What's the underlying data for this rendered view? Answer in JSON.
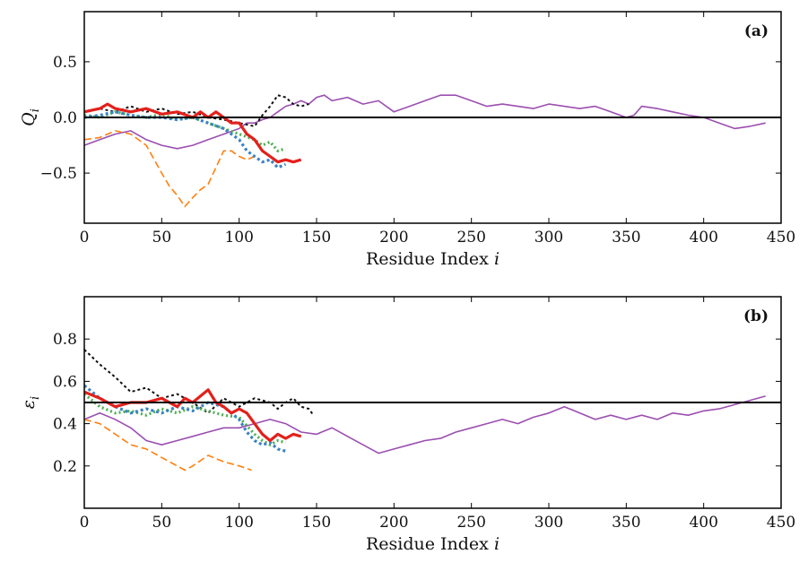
{
  "chart_data": [
    {
      "type": "line",
      "panel_label": "(a)",
      "xlabel": "Residue Index",
      "xlabel_var": "i",
      "ylabel": "Q",
      "ylabel_sub": "i",
      "xlim": [
        0,
        450
      ],
      "ylim": [
        -0.95,
        0.95
      ],
      "xticks": [
        0,
        50,
        100,
        150,
        200,
        250,
        300,
        350,
        400,
        450
      ],
      "yticks": [
        -0.5,
        0.0,
        0.5
      ],
      "ytick_labels": [
        "−0.5",
        "0.0",
        "0.5"
      ],
      "reference_line": 0.0,
      "series": [
        {
          "name": "purple",
          "color": "#9b4fb0",
          "dash": "",
          "width": 1.6,
          "x": [
            0,
            10,
            20,
            30,
            40,
            50,
            60,
            70,
            80,
            90,
            100,
            105,
            110,
            115,
            120,
            125,
            130,
            135,
            140,
            145,
            150,
            155,
            160,
            170,
            180,
            190,
            200,
            210,
            220,
            230,
            240,
            250,
            260,
            270,
            280,
            290,
            300,
            310,
            320,
            330,
            340,
            350,
            355,
            360,
            370,
            380,
            390,
            400,
            410,
            420,
            430,
            440
          ],
          "y": [
            -0.25,
            -0.2,
            -0.15,
            -0.12,
            -0.2,
            -0.25,
            -0.28,
            -0.25,
            -0.2,
            -0.15,
            -0.1,
            -0.05,
            -0.05,
            -0.02,
            0.0,
            0.05,
            0.1,
            0.12,
            0.15,
            0.12,
            0.18,
            0.2,
            0.15,
            0.18,
            0.12,
            0.15,
            0.05,
            0.1,
            0.15,
            0.2,
            0.2,
            0.15,
            0.1,
            0.12,
            0.1,
            0.08,
            0.12,
            0.1,
            0.08,
            0.1,
            0.05,
            0.0,
            0.02,
            0.1,
            0.08,
            0.05,
            0.02,
            0.0,
            -0.05,
            -0.1,
            -0.08,
            -0.05
          ]
        },
        {
          "name": "orange",
          "color": "#ff7f0e",
          "dash": "8,4",
          "width": 1.6,
          "x": [
            0,
            10,
            20,
            30,
            40,
            50,
            55,
            60,
            65,
            70,
            75,
            80,
            85,
            90,
            95,
            100,
            105,
            110
          ],
          "y": [
            -0.2,
            -0.18,
            -0.12,
            -0.15,
            -0.25,
            -0.5,
            -0.62,
            -0.7,
            -0.8,
            -0.72,
            -0.65,
            -0.6,
            -0.45,
            -0.3,
            -0.3,
            -0.35,
            -0.38,
            -0.35
          ]
        },
        {
          "name": "black",
          "color": "#111111",
          "dash": "3,3",
          "width": 2.0,
          "x": [
            0,
            10,
            20,
            30,
            40,
            50,
            60,
            70,
            80,
            90,
            100,
            110,
            115,
            120,
            125,
            130,
            135,
            140,
            145
          ],
          "y": [
            0.05,
            0.08,
            0.05,
            0.1,
            0.05,
            0.08,
            0.03,
            0.05,
            0.0,
            -0.02,
            -0.05,
            -0.08,
            0.02,
            0.1,
            0.2,
            0.18,
            0.12,
            0.1,
            0.12
          ]
        },
        {
          "name": "green",
          "color": "#4caf50",
          "dash": "2,3",
          "width": 3.2,
          "x": [
            0,
            10,
            20,
            30,
            40,
            50,
            60,
            70,
            80,
            90,
            100,
            110,
            115,
            120,
            125,
            130
          ],
          "y": [
            0.02,
            0.0,
            0.05,
            0.02,
            0.0,
            0.03,
            -0.02,
            0.0,
            -0.05,
            -0.1,
            -0.15,
            -0.2,
            -0.25,
            -0.22,
            -0.3,
            -0.28
          ]
        },
        {
          "name": "blue",
          "color": "#3b82c4",
          "dash": "3,3",
          "width": 3.2,
          "x": [
            0,
            10,
            20,
            30,
            40,
            50,
            60,
            70,
            80,
            90,
            100,
            105,
            110,
            115,
            120,
            125,
            130
          ],
          "y": [
            0.0,
            0.02,
            0.05,
            0.02,
            0.0,
            0.0,
            -0.02,
            0.0,
            -0.05,
            -0.1,
            -0.2,
            -0.3,
            -0.35,
            -0.4,
            -0.38,
            -0.45,
            -0.42
          ]
        },
        {
          "name": "red",
          "color": "#e3201b",
          "dash": "",
          "width": 3.2,
          "x": [
            0,
            10,
            15,
            20,
            30,
            40,
            50,
            60,
            70,
            75,
            80,
            85,
            90,
            95,
            100,
            105,
            110,
            115,
            120,
            125,
            130,
            135,
            140
          ],
          "y": [
            0.05,
            0.08,
            0.12,
            0.08,
            0.05,
            0.08,
            0.03,
            0.05,
            0.0,
            0.05,
            0.0,
            0.05,
            0.0,
            -0.05,
            -0.05,
            -0.15,
            -0.2,
            -0.3,
            -0.35,
            -0.4,
            -0.38,
            -0.4,
            -0.38
          ]
        }
      ]
    },
    {
      "type": "line",
      "panel_label": "(b)",
      "xlabel": "Residue Index",
      "xlabel_var": "i",
      "ylabel": "ε",
      "ylabel_sub": "i",
      "xlim": [
        0,
        450
      ],
      "ylim": [
        0.0,
        1.0
      ],
      "xticks": [
        0,
        50,
        100,
        150,
        200,
        250,
        300,
        350,
        400,
        450
      ],
      "yticks": [
        0.2,
        0.4,
        0.6,
        0.8
      ],
      "ytick_labels": [
        "0.2",
        "0.4",
        "0.6",
        "0.8"
      ],
      "reference_line": 0.5,
      "series": [
        {
          "name": "purple",
          "color": "#9b4fb0",
          "dash": "",
          "width": 1.6,
          "x": [
            0,
            10,
            20,
            30,
            40,
            50,
            60,
            70,
            80,
            90,
            100,
            110,
            120,
            130,
            140,
            150,
            160,
            170,
            180,
            190,
            200,
            210,
            220,
            230,
            240,
            250,
            260,
            270,
            280,
            290,
            300,
            310,
            320,
            330,
            340,
            350,
            360,
            370,
            380,
            390,
            400,
            410,
            420,
            430,
            440
          ],
          "y": [
            0.42,
            0.45,
            0.42,
            0.38,
            0.32,
            0.3,
            0.32,
            0.34,
            0.36,
            0.38,
            0.38,
            0.4,
            0.42,
            0.4,
            0.36,
            0.35,
            0.38,
            0.34,
            0.3,
            0.26,
            0.28,
            0.3,
            0.32,
            0.33,
            0.36,
            0.38,
            0.4,
            0.42,
            0.4,
            0.43,
            0.45,
            0.48,
            0.45,
            0.42,
            0.44,
            0.42,
            0.44,
            0.42,
            0.45,
            0.44,
            0.46,
            0.47,
            0.49,
            0.51,
            0.53
          ]
        },
        {
          "name": "orange",
          "color": "#ff7f0e",
          "dash": "8,4",
          "width": 1.6,
          "x": [
            0,
            10,
            20,
            30,
            40,
            50,
            60,
            65,
            70,
            80,
            90,
            100,
            108
          ],
          "y": [
            0.42,
            0.4,
            0.35,
            0.3,
            0.28,
            0.24,
            0.2,
            0.18,
            0.2,
            0.25,
            0.22,
            0.2,
            0.18
          ]
        },
        {
          "name": "black",
          "color": "#111111",
          "dash": "3,3",
          "width": 2.0,
          "x": [
            0,
            10,
            20,
            30,
            40,
            50,
            60,
            70,
            80,
            90,
            100,
            110,
            120,
            125,
            130,
            135,
            140,
            145,
            148
          ],
          "y": [
            0.75,
            0.68,
            0.62,
            0.55,
            0.57,
            0.52,
            0.54,
            0.5,
            0.45,
            0.52,
            0.48,
            0.52,
            0.5,
            0.47,
            0.5,
            0.52,
            0.48,
            0.47,
            0.44
          ]
        },
        {
          "name": "green",
          "color": "#4caf50",
          "dash": "2,3",
          "width": 3.2,
          "x": [
            0,
            10,
            20,
            30,
            40,
            50,
            60,
            70,
            80,
            90,
            100,
            110,
            115,
            120,
            125,
            130
          ],
          "y": [
            0.54,
            0.48,
            0.45,
            0.46,
            0.44,
            0.47,
            0.45,
            0.48,
            0.46,
            0.44,
            0.43,
            0.35,
            0.32,
            0.3,
            0.32,
            0.31
          ]
        },
        {
          "name": "blue",
          "color": "#3b82c4",
          "dash": "3,3",
          "width": 3.2,
          "x": [
            0,
            10,
            20,
            30,
            40,
            50,
            60,
            70,
            80,
            90,
            100,
            105,
            110,
            115,
            120,
            125,
            130
          ],
          "y": [
            0.58,
            0.52,
            0.48,
            0.45,
            0.47,
            0.45,
            0.48,
            0.46,
            0.5,
            0.48,
            0.42,
            0.36,
            0.32,
            0.3,
            0.31,
            0.28,
            0.27
          ]
        },
        {
          "name": "red",
          "color": "#e3201b",
          "dash": "",
          "width": 3.2,
          "x": [
            0,
            10,
            20,
            30,
            40,
            50,
            60,
            65,
            70,
            75,
            80,
            85,
            90,
            95,
            100,
            105,
            110,
            115,
            120,
            125,
            130,
            135,
            140
          ],
          "y": [
            0.55,
            0.52,
            0.48,
            0.5,
            0.5,
            0.52,
            0.48,
            0.52,
            0.5,
            0.53,
            0.56,
            0.5,
            0.48,
            0.45,
            0.47,
            0.45,
            0.4,
            0.35,
            0.32,
            0.35,
            0.33,
            0.35,
            0.34
          ]
        }
      ]
    }
  ]
}
